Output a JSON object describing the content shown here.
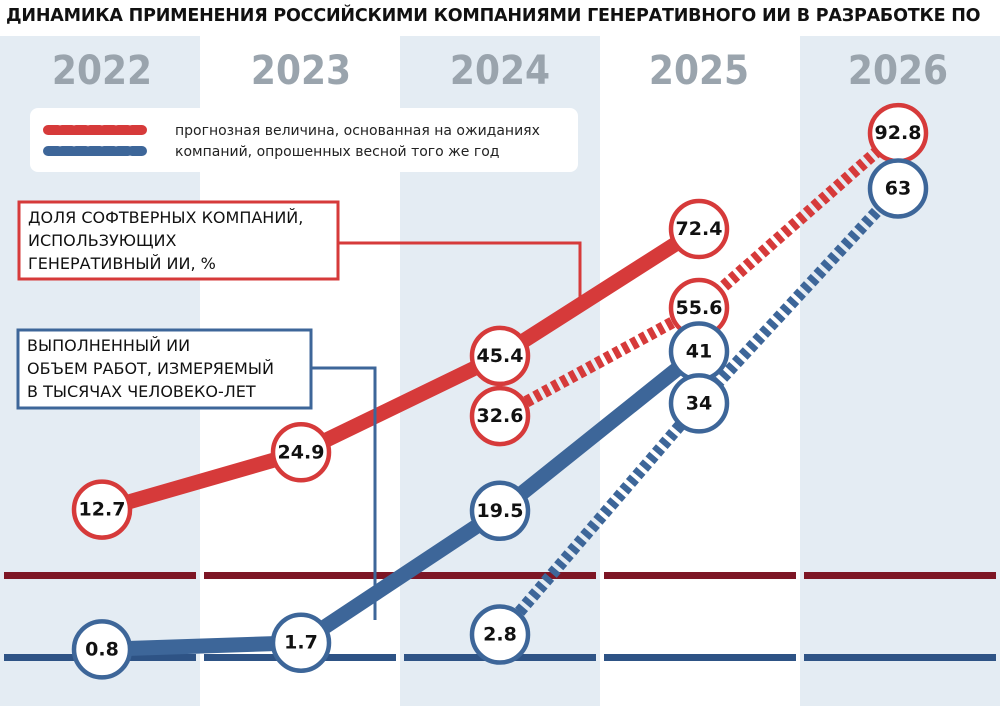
{
  "title": "ДИНАМИКА ПРИМЕНЕНИЯ РОССИЙСКИМИ КОМПАНИЯМИ ГЕНЕРАТИВНОГО ИИ В РАЗРАБОТКЕ ПО",
  "legend": {
    "text_line1": "прогнозная величина, основанная на ожиданиях",
    "text_line2": "компаний, опрошенных весной того же год"
  },
  "label_share": [
    "ДОЛЯ СОФТВЕРНЫХ КОМПАНИЙ,",
    "ИСПОЛЬЗУЮЩИХ",
    "ГЕНЕРАТИВНЫЙ ИИ, %"
  ],
  "label_work": [
    "ВЫПОЛНЕННЫЙ ИИ",
    "ОБЪЕМ РАБОТ, ИЗМЕРЯЕМЫЙ",
    "В ТЫСЯЧАХ ЧЕЛОВЕКО-ЛЕТ"
  ],
  "colors": {
    "red": "#d63a3a",
    "blue": "#3d6699",
    "dark_red": "#7d1625",
    "dark_blue": "#2e5385",
    "column_shade": "#e4ecf3"
  },
  "chart_data": {
    "type": "line",
    "x": [
      "2022",
      "2023",
      "2024",
      "2025",
      "2026"
    ],
    "series": [
      {
        "group": "share_percent",
        "style": "solid",
        "points": [
          {
            "x": "2022",
            "y": 12.7,
            "label": "12.7"
          },
          {
            "x": "2023",
            "y": 24.9,
            "label": "24.9"
          },
          {
            "x": "2024",
            "y": 45.4,
            "label": "45.4"
          },
          {
            "x": "2025",
            "y": 72.4,
            "label": "72.4"
          }
        ]
      },
      {
        "group": "share_percent",
        "style": "dashed",
        "points": [
          {
            "x": "2024",
            "y": 32.6,
            "label": "32.6"
          },
          {
            "x": "2025",
            "y": 55.6,
            "label": "55.6"
          },
          {
            "x": "2026",
            "y": 92.8,
            "label": "92.8"
          }
        ]
      },
      {
        "group": "work_thousand_person_years",
        "style": "solid",
        "points": [
          {
            "x": "2022",
            "y": 0.8,
            "label": "0.8"
          },
          {
            "x": "2023",
            "y": 1.7,
            "label": "1.7"
          },
          {
            "x": "2024",
            "y": 19.5,
            "label": "19.5"
          },
          {
            "x": "2025",
            "y": 41,
            "label": "41"
          }
        ]
      },
      {
        "group": "work_thousand_person_years",
        "style": "dashed",
        "points": [
          {
            "x": "2024",
            "y": 2.8,
            "label": "2.8"
          },
          {
            "x": "2025",
            "y": 34,
            "label": "34"
          },
          {
            "x": "2026",
            "y": 63,
            "label": "63"
          }
        ]
      }
    ]
  }
}
